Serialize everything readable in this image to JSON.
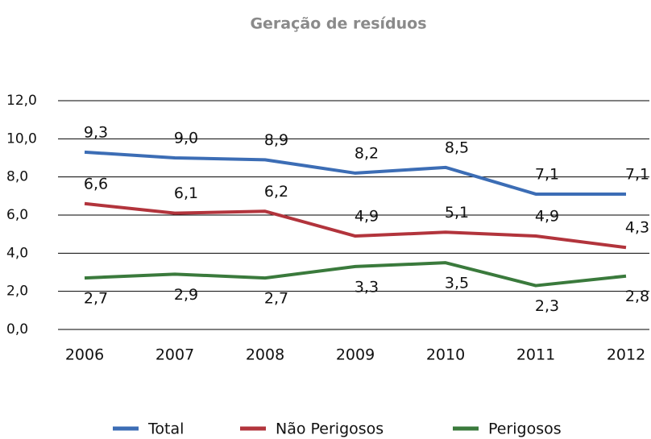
{
  "chart_data": {
    "type": "line",
    "title": "Geração de resíduos",
    "categories": [
      "2006",
      "2007",
      "2008",
      "2009",
      "2010",
      "2011",
      "2012"
    ],
    "series": [
      {
        "name": "Total",
        "color": "#3c6db5",
        "values": [
          9.3,
          9.0,
          8.9,
          8.2,
          8.5,
          7.1,
          7.1
        ],
        "value_labels": [
          "9,3",
          "9,0",
          "8,9",
          "8,2",
          "8,5",
          "7,1",
          "7,1"
        ]
      },
      {
        "name": "Não Perigosos",
        "color": "#b2343c",
        "values": [
          6.6,
          6.1,
          6.2,
          4.9,
          5.1,
          4.9,
          4.3
        ],
        "value_labels": [
          "6,6",
          "6,1",
          "6,2",
          "4,9",
          "5,1",
          "4,9",
          "4,3"
        ]
      },
      {
        "name": "Perigosos",
        "color": "#3a7a3c",
        "values": [
          2.7,
          2.9,
          2.7,
          3.3,
          3.5,
          2.3,
          2.8
        ],
        "value_labels": [
          "2,7",
          "2,9",
          "2,7",
          "3,3",
          "3,5",
          "2,3",
          "2,8"
        ]
      }
    ],
    "ylim": [
      0,
      12
    ],
    "yticks": [
      {
        "value": 0,
        "label": "0,0"
      },
      {
        "value": 2,
        "label": "2,0"
      },
      {
        "value": 4,
        "label": "4,0"
      },
      {
        "value": 6,
        "label": "6,0"
      },
      {
        "value": 8,
        "label": "8,0"
      },
      {
        "value": 10,
        "label": "10,0"
      },
      {
        "value": 12,
        "label": "12,0"
      }
    ],
    "grid": true,
    "legend": "bottom"
  }
}
